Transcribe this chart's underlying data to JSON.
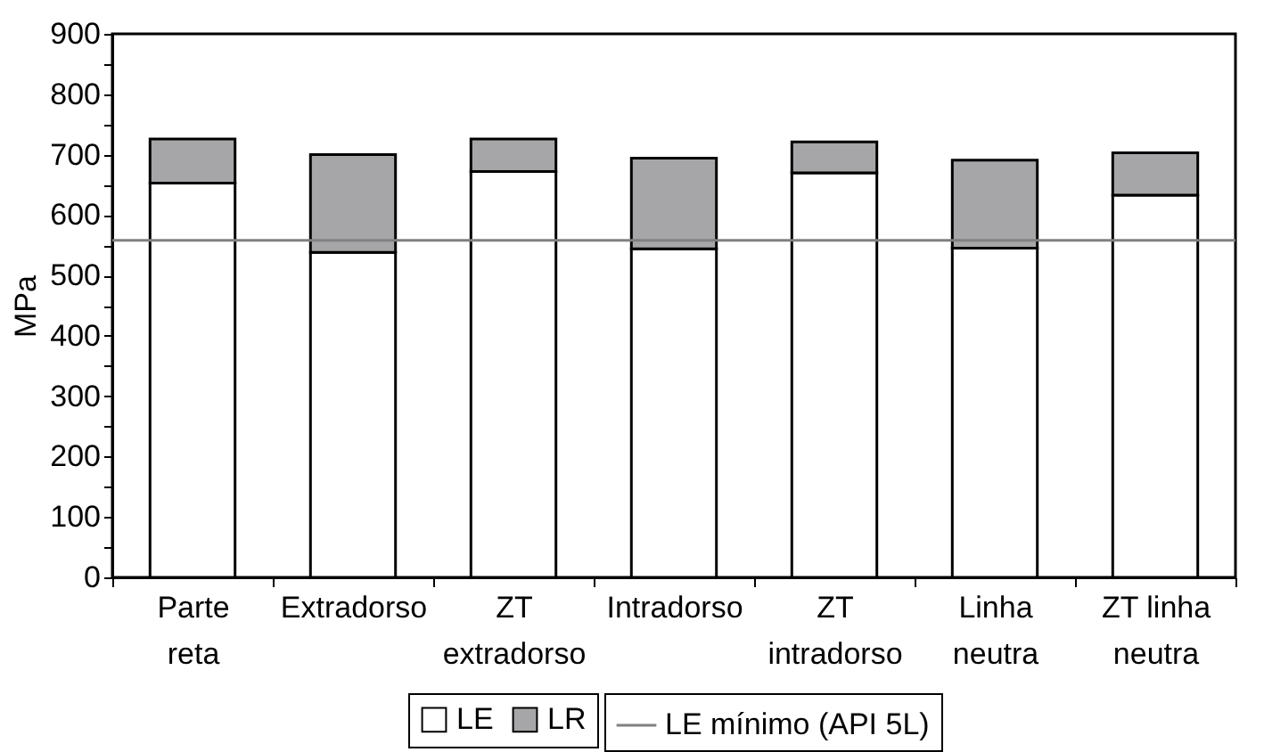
{
  "chart_data": {
    "type": "bar",
    "stacked": true,
    "ylabel": "MPa",
    "categories": [
      "Parte reta",
      "Extradorso",
      "ZT extradorso",
      "Intradorso",
      "ZT intradorso",
      "Linha neutra",
      "ZT linha neutra"
    ],
    "series": [
      {
        "name": "LE",
        "color": "#ffffff",
        "values": [
          653,
          538,
          672,
          544,
          670,
          545,
          633
        ]
      },
      {
        "name": "LR",
        "color": "#a6a6a8",
        "values": [
          73,
          162,
          54,
          150,
          51,
          146,
          70
        ]
      }
    ],
    "ylim": [
      0,
      900
    ],
    "yticks": [
      0,
      {
        "value": 50,
        "label": null
      },
      100,
      {
        "value": 150,
        "label": null
      },
      200,
      {
        "value": 250,
        "label": null
      },
      300,
      {
        "value": 350,
        "label": null
      },
      400,
      {
        "value": 450,
        "label": null
      },
      500,
      {
        "value": 550,
        "label": null
      },
      600,
      {
        "value": 650,
        "label": null
      },
      700,
      {
        "value": 750,
        "label": null
      },
      800,
      {
        "value": 850,
        "label": null
      },
      900
    ],
    "ref_lines": [
      {
        "axis": "y",
        "value": 558,
        "label": "LE mínimo (API 5L)",
        "color": "#808080"
      }
    ],
    "legend": "bottom",
    "grid": false
  }
}
